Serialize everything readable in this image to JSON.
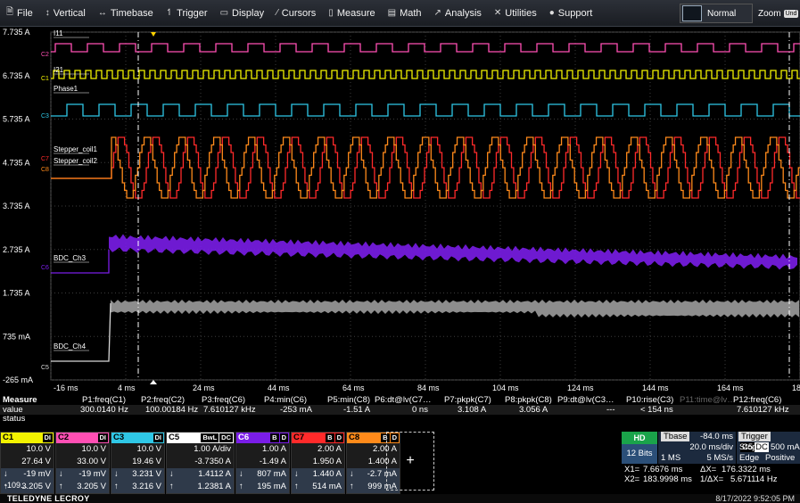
{
  "menu": {
    "items": [
      {
        "icon": "file-icon",
        "glyph": "🗎",
        "label": "File"
      },
      {
        "icon": "vertical-icon",
        "glyph": "↕",
        "label": "Vertical"
      },
      {
        "icon": "timebase-icon",
        "glyph": "↔",
        "label": "Timebase"
      },
      {
        "icon": "trigger-icon",
        "glyph": "↿",
        "label": "Trigger"
      },
      {
        "icon": "display-icon",
        "glyph": "▭",
        "label": "Display"
      },
      {
        "icon": "cursors-icon",
        "glyph": "⁄",
        "label": "Cursors"
      },
      {
        "icon": "measure-icon",
        "glyph": "▯",
        "label": "Measure"
      },
      {
        "icon": "math-icon",
        "glyph": "▤",
        "label": "Math"
      },
      {
        "icon": "analysis-icon",
        "glyph": "↗",
        "label": "Analysis"
      },
      {
        "icon": "utilities-icon",
        "glyph": "✕",
        "label": "Utilities"
      },
      {
        "icon": "support-icon",
        "glyph": "●",
        "label": "Support"
      }
    ],
    "mode": "Normal",
    "zoom": "Zoom",
    "undo": "Und"
  },
  "graph": {
    "y_labels": [
      "7.735 A",
      "6.735 A",
      "5.735 A",
      "4.735 A",
      "3.735 A",
      "2.735 A",
      "1.735 A",
      "735 mA",
      "-265 mA"
    ],
    "x_labels": [
      "-16 ms",
      "4 ms",
      "24 ms",
      "44 ms",
      "64 ms",
      "84 ms",
      "104 ms",
      "124 ms",
      "144 ms",
      "164 ms",
      "184 ms"
    ],
    "trace_labels": [
      {
        "text": "I11",
        "color": "#ffffff"
      },
      {
        "text": "I21",
        "color": "#ffffff"
      },
      {
        "text": "Phase1",
        "color": "#ffffff"
      },
      {
        "text": "Stepper_coil1",
        "color": "#ffffff"
      },
      {
        "text": "Stepper_coil2",
        "color": "#ffffff"
      },
      {
        "text": "BDC_Ch3",
        "color": "#ffffff"
      },
      {
        "text": "BDC_Ch4",
        "color": "#ffffff"
      }
    ],
    "channel_markers": [
      "C2",
      "C1",
      "C3",
      "C7",
      "C8",
      "C6",
      "C5"
    ],
    "colors": {
      "c1": "#f2f200",
      "c2": "#ff4fb4",
      "c3": "#2fc7e6",
      "c5": "#d8d8d8",
      "c6": "#7a1de8",
      "c7": "#ff2a2a",
      "c8": "#ff8a1a",
      "grid": "#3c3c3c"
    }
  },
  "measure": {
    "header": [
      "Measure",
      "P1:freq(C1)",
      "P2:freq(C2)",
      "P3:freq(C6)",
      "P4:min(C6)",
      "P5:min(C8)",
      "P6:dt@lv(C7…",
      "P7:pkpk(C7)",
      "P8:pkpk(C8)",
      "P9:dt@lv(C3…",
      "P10:rise(C3)",
      "P11:time@lv…",
      "P12:freq(C6)"
    ],
    "values": [
      "value",
      "300.0140 Hz",
      "100.00184 Hz",
      "7.610127 kHz",
      "-253 mA",
      "-1.51 A",
      "0 ns",
      "3.108 A",
      "3.056 A",
      "---",
      "< 154 ns",
      "",
      "7.610127 kHz"
    ],
    "status_label": "status"
  },
  "channels": [
    {
      "id": "C1",
      "tags": [
        "DI"
      ],
      "color": "#f2f200",
      "lines": [
        "10.0 V",
        "27.64 V",
        "-19 mV",
        "3.205 V"
      ],
      "arrows": [
        "",
        "",
        "↓",
        "↑"
      ],
      "extra": "-109..."
    },
    {
      "id": "C2",
      "tags": [
        "DI"
      ],
      "color": "#ff4fb4",
      "lines": [
        "10.0 V",
        "33.00 V",
        "-19 mV",
        "3.205 V"
      ],
      "arrows": [
        "",
        "",
        "↓",
        "↑"
      ]
    },
    {
      "id": "C3",
      "tags": [
        "DI"
      ],
      "color": "#2fc7e6",
      "lines": [
        "10.0 V",
        "19.46 V",
        "3.231 V",
        "3.216 V"
      ],
      "arrows": [
        "",
        "",
        "↓",
        "↑"
      ]
    },
    {
      "id": "C5",
      "tags": [
        "BwL",
        "DC"
      ],
      "color": "#ffffff",
      "lines": [
        "1.00 A/div",
        "-3.7350 A",
        "1.4112 A",
        "1.2381 A"
      ],
      "arrows": [
        "",
        "",
        "↓",
        "↑"
      ]
    },
    {
      "id": "C6",
      "tags": [
        "B",
        "D"
      ],
      "color": "#7a1de8",
      "lines": [
        "1.00 A",
        "-1.49 A",
        "807 mA",
        "195 mA"
      ],
      "arrows": [
        "",
        "",
        "↓",
        "↑"
      ]
    },
    {
      "id": "C7",
      "tags": [
        "B",
        "D"
      ],
      "color": "#ff2a2a",
      "lines": [
        "2.00 A",
        "1.950 A",
        "1.440 A",
        "514 mA"
      ],
      "arrows": [
        "",
        "",
        "↓",
        "↑"
      ]
    },
    {
      "id": "C8",
      "tags": [
        "B",
        "D"
      ],
      "color": "#ff8a1a",
      "lines": [
        "2.00 A",
        "1.400 A",
        "-2.7 mA",
        "999 mA"
      ],
      "arrows": [
        "",
        "",
        "↓",
        "↑"
      ]
    }
  ],
  "add_label": "+",
  "timebase": {
    "hd": "HD",
    "bits": "12 Bits",
    "label": "Tbase",
    "offset": "-84.0 ms",
    "rate": "20.0 ms/div",
    "mem": "1 MS",
    "srate": "5 MS/s"
  },
  "trigger": {
    "label": "Trigger",
    "src": "C5",
    "cpl": "DC",
    "mode": "Stop",
    "level": "500 mA",
    "type": "Edge",
    "slope": "Positive"
  },
  "cursors": {
    "x1_label": "X1=",
    "x1": "7.6676 ms",
    "dx_label": "ΔX=",
    "dx": "176.3322 ms",
    "x2_label": "X2=",
    "x2": "183.9998 ms",
    "inv_label": "1/ΔX=",
    "inv": "5.671114 Hz"
  },
  "status": {
    "brand": "TELEDYNE LECROY",
    "datetime": "8/17/2022 9:52:05 PM"
  }
}
